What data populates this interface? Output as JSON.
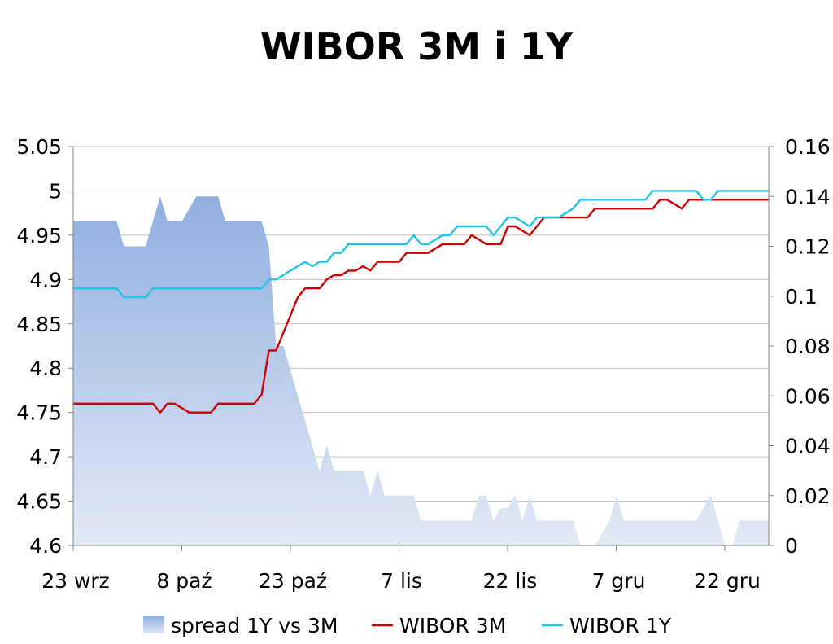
{
  "chart_data": {
    "type": "line",
    "title": "WIBOR 3M i 1Y",
    "x_ticks": [
      "23 wrz",
      "8 paź",
      "23 paź",
      "7 lis",
      "22 lis",
      "7 gru",
      "22 gru"
    ],
    "y_left": {
      "min": 4.6,
      "max": 5.05,
      "ticks": [
        "4.6",
        "4.65",
        "4.7",
        "4.75",
        "4.8",
        "4.85",
        "4.9",
        "4.95",
        "5",
        "5.05"
      ]
    },
    "y_right": {
      "min": 0,
      "max": 0.16,
      "ticks": [
        "0",
        "0.02",
        "0.04",
        "0.06",
        "0.08",
        "0.1",
        "0.12",
        "0.14",
        "0.16"
      ]
    },
    "grid": "horizontal",
    "legend_position": "bottom",
    "series": [
      {
        "name": "spread 1Y vs 3M",
        "kind": "area",
        "axis": "right",
        "color_top": "#8faedf",
        "color_bottom": "#e3e9f6",
        "values": [
          0.13,
          0.13,
          0.13,
          0.13,
          0.13,
          0.13,
          0.13,
          0.12,
          0.12,
          0.12,
          0.12,
          0.13,
          0.14,
          0.13,
          0.13,
          0.13,
          0.135,
          0.14,
          0.14,
          0.14,
          0.14,
          0.13,
          0.13,
          0.13,
          0.13,
          0.13,
          0.13,
          0.12,
          0.08,
          0.08,
          0.07,
          0.06,
          0.05,
          0.04,
          0.03,
          0.04,
          0.03,
          0.03,
          0.03,
          0.03,
          0.03,
          0.02,
          0.03,
          0.02,
          0.02,
          0.02,
          0.02,
          0.02,
          0.01,
          0.01,
          0.01,
          0.01,
          0.01,
          0.01,
          0.01,
          0.01,
          0.02,
          0.02,
          0.01,
          0.015,
          0.015,
          0.02,
          0.01,
          0.02,
          0.01,
          0.01,
          0.01,
          0.01,
          0.01,
          0.01,
          0,
          0,
          0,
          0.005,
          0.01,
          0.02,
          0.01,
          0.01,
          0.01,
          0.01,
          0.01,
          0.01,
          0.01,
          0.01,
          0.01,
          0.01,
          0.01,
          0.015,
          0.02,
          0.01,
          0,
          0,
          0.01,
          0.01,
          0.01,
          0.01,
          0.01
        ]
      },
      {
        "name": "WIBOR 3M",
        "kind": "line",
        "axis": "left",
        "color": "#cc0000",
        "values": [
          4.76,
          4.76,
          4.76,
          4.76,
          4.76,
          4.76,
          4.76,
          4.76,
          4.76,
          4.76,
          4.76,
          4.76,
          4.75,
          4.76,
          4.76,
          4.755,
          4.75,
          4.75,
          4.75,
          4.75,
          4.76,
          4.76,
          4.76,
          4.76,
          4.76,
          4.76,
          4.77,
          4.82,
          4.82,
          4.84,
          4.86,
          4.88,
          4.89,
          4.89,
          4.89,
          4.9,
          4.905,
          4.905,
          4.91,
          4.91,
          4.915,
          4.91,
          4.92,
          4.92,
          4.92,
          4.92,
          4.93,
          4.93,
          4.93,
          4.93,
          4.935,
          4.94,
          4.94,
          4.94,
          4.94,
          4.95,
          4.945,
          4.94,
          4.94,
          4.94,
          4.96,
          4.96,
          4.955,
          4.95,
          4.96,
          4.97,
          4.97,
          4.97,
          4.97,
          4.97,
          4.97,
          4.97,
          4.98,
          4.98,
          4.98,
          4.98,
          4.98,
          4.98,
          4.98,
          4.98,
          4.98,
          4.99,
          4.99,
          4.985,
          4.98,
          4.99,
          4.99,
          4.99,
          4.99,
          4.99,
          4.99,
          4.99,
          4.99,
          4.99,
          4.99,
          4.99,
          4.99
        ]
      },
      {
        "name": "WIBOR 1Y",
        "kind": "line",
        "axis": "left",
        "color": "#21c3e8",
        "values": [
          4.89,
          4.89,
          4.89,
          4.89,
          4.89,
          4.89,
          4.89,
          4.88,
          4.88,
          4.88,
          4.88,
          4.89,
          4.89,
          4.89,
          4.89,
          4.89,
          4.89,
          4.89,
          4.89,
          4.89,
          4.89,
          4.89,
          4.89,
          4.89,
          4.89,
          4.89,
          4.89,
          4.9,
          4.9,
          4.905,
          4.91,
          4.915,
          4.92,
          4.915,
          4.92,
          4.92,
          4.93,
          4.93,
          4.94,
          4.94,
          4.94,
          4.94,
          4.94,
          4.94,
          4.94,
          4.94,
          4.94,
          4.95,
          4.94,
          4.94,
          4.945,
          4.95,
          4.95,
          4.96,
          4.96,
          4.96,
          4.96,
          4.96,
          4.95,
          4.96,
          4.97,
          4.97,
          4.965,
          4.96,
          4.97,
          4.97,
          4.97,
          4.97,
          4.975,
          4.98,
          4.99,
          4.99,
          4.99,
          4.99,
          4.99,
          4.99,
          4.99,
          4.99,
          4.99,
          4.99,
          5,
          5,
          5,
          5,
          5,
          5,
          5,
          4.99,
          4.99,
          5,
          5,
          5,
          5,
          5,
          5,
          5,
          5
        ]
      }
    ]
  }
}
